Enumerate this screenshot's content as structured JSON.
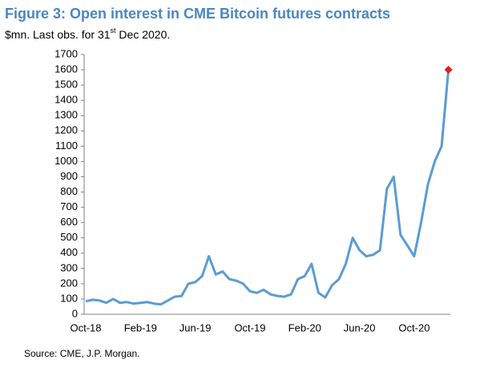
{
  "chart_data": {
    "type": "line",
    "title": "Figure 3: Open interest in CME Bitcoin futures contracts",
    "subtitle": "$mn. Last obs. for 31",
    "subtitle_sup": "st",
    "subtitle_end": " Dec 2020.",
    "source": "Source: CME, J.P. Morgan.",
    "categories": [
      "Oct-18",
      null,
      null,
      null,
      null,
      null,
      null,
      null,
      "Feb-19",
      null,
      null,
      null,
      null,
      null,
      null,
      null,
      "Jun-19",
      null,
      null,
      null,
      null,
      null,
      null,
      null,
      "Oct-19",
      null,
      null,
      null,
      null,
      null,
      null,
      null,
      "Feb-20",
      null,
      null,
      null,
      null,
      null,
      null,
      null,
      "Jun-20",
      null,
      null,
      null,
      null,
      null,
      null,
      null,
      "Oct-20",
      null,
      null,
      null,
      null,
      null
    ],
    "values": [
      85,
      95,
      90,
      75,
      100,
      75,
      80,
      70,
      75,
      80,
      70,
      65,
      90,
      115,
      120,
      200,
      210,
      250,
      380,
      260,
      280,
      230,
      220,
      200,
      150,
      140,
      160,
      130,
      120,
      115,
      130,
      230,
      250,
      330,
      140,
      110,
      190,
      230,
      330,
      500,
      420,
      380,
      390,
      420,
      820,
      900,
      520,
      450,
      380,
      600,
      850,
      1000,
      1100,
      1600
    ],
    "color": "#5b9bd5",
    "marker_color": "#e3201b",
    "ylim": [
      0,
      1700
    ],
    "yticks": [
      0,
      100,
      200,
      300,
      400,
      500,
      600,
      700,
      800,
      900,
      1000,
      1100,
      1200,
      1300,
      1400,
      1500,
      1600,
      1700
    ],
    "grid": false
  }
}
